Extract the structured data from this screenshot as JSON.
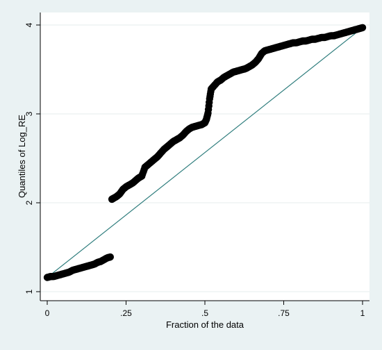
{
  "chart_data": {
    "type": "scatter",
    "title": "",
    "xlabel": "Fraction of the data",
    "ylabel": "Quantiles of Log_RE",
    "xlim": [
      0,
      1
    ],
    "ylim": [
      1,
      4
    ],
    "xticks": [
      {
        "value": 0,
        "label": "0"
      },
      {
        "value": 0.25,
        "label": ".25"
      },
      {
        "value": 0.5,
        "label": ".5"
      },
      {
        "value": 0.75,
        "label": ".75"
      },
      {
        "value": 1,
        "label": "1"
      }
    ],
    "yticks": [
      {
        "value": 1,
        "label": "1"
      },
      {
        "value": 2,
        "label": "2"
      },
      {
        "value": 3,
        "label": "3"
      },
      {
        "value": 4,
        "label": "4"
      }
    ],
    "grid": true,
    "reference_line": {
      "x": [
        0,
        1
      ],
      "y": [
        1.16,
        3.97
      ],
      "color": "#2e7d7d"
    },
    "marker_color": "#000000",
    "points": {
      "x": [
        0.0,
        0.01,
        0.02,
        0.03,
        0.04,
        0.05,
        0.06,
        0.07,
        0.08,
        0.09,
        0.1,
        0.11,
        0.12,
        0.13,
        0.14,
        0.15,
        0.16,
        0.17,
        0.18,
        0.19,
        0.2,
        0.205,
        0.21,
        0.22,
        0.23,
        0.24,
        0.25,
        0.26,
        0.27,
        0.28,
        0.29,
        0.3,
        0.31,
        0.32,
        0.33,
        0.34,
        0.35,
        0.36,
        0.37,
        0.38,
        0.39,
        0.4,
        0.41,
        0.42,
        0.43,
        0.44,
        0.45,
        0.46,
        0.47,
        0.48,
        0.49,
        0.5,
        0.505,
        0.51,
        0.515,
        0.52,
        0.53,
        0.54,
        0.55,
        0.56,
        0.57,
        0.58,
        0.59,
        0.6,
        0.61,
        0.62,
        0.63,
        0.64,
        0.65,
        0.66,
        0.67,
        0.68,
        0.69,
        0.7,
        0.71,
        0.72,
        0.73,
        0.74,
        0.75,
        0.76,
        0.77,
        0.78,
        0.79,
        0.8,
        0.81,
        0.82,
        0.83,
        0.84,
        0.85,
        0.86,
        0.87,
        0.88,
        0.89,
        0.9,
        0.91,
        0.92,
        0.93,
        0.94,
        0.95,
        0.96,
        0.97,
        0.98,
        0.99,
        1.0
      ],
      "y": [
        1.16,
        1.17,
        1.17,
        1.18,
        1.19,
        1.2,
        1.21,
        1.22,
        1.24,
        1.25,
        1.26,
        1.27,
        1.28,
        1.29,
        1.3,
        1.31,
        1.33,
        1.34,
        1.36,
        1.38,
        1.39,
        2.04,
        2.05,
        2.07,
        2.1,
        2.15,
        2.18,
        2.2,
        2.22,
        2.25,
        2.28,
        2.3,
        2.4,
        2.43,
        2.46,
        2.49,
        2.52,
        2.56,
        2.6,
        2.63,
        2.66,
        2.69,
        2.71,
        2.73,
        2.76,
        2.8,
        2.83,
        2.85,
        2.86,
        2.87,
        2.88,
        2.9,
        2.94,
        3.01,
        3.17,
        3.28,
        3.32,
        3.36,
        3.38,
        3.41,
        3.43,
        3.45,
        3.47,
        3.48,
        3.49,
        3.5,
        3.51,
        3.53,
        3.55,
        3.58,
        3.62,
        3.68,
        3.71,
        3.72,
        3.73,
        3.74,
        3.75,
        3.76,
        3.77,
        3.78,
        3.79,
        3.8,
        3.8,
        3.81,
        3.82,
        3.82,
        3.83,
        3.84,
        3.84,
        3.85,
        3.86,
        3.86,
        3.87,
        3.88,
        3.88,
        3.89,
        3.9,
        3.91,
        3.92,
        3.93,
        3.94,
        3.95,
        3.96,
        3.97
      ]
    }
  }
}
